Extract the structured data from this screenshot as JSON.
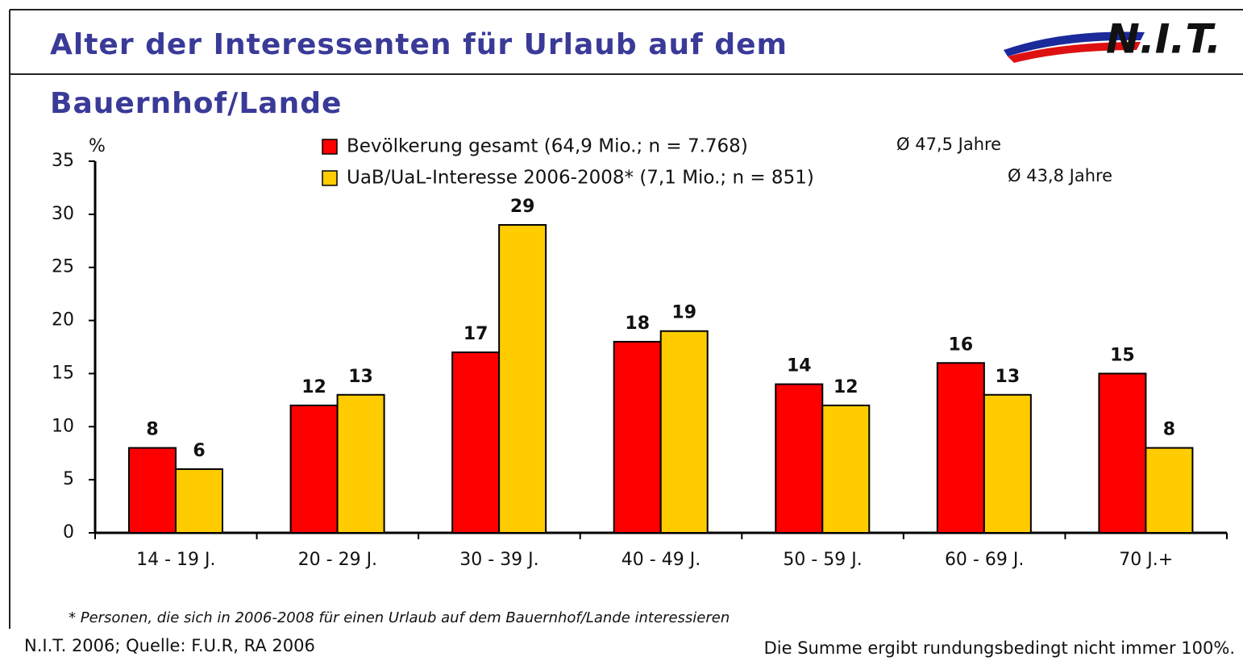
{
  "chart_data": {
    "type": "bar",
    "title": [
      "Alter der Interessenten für Urlaub auf dem",
      "Bauernhof/Lande"
    ],
    "logo": "N.I.T.",
    "y_unit": "%",
    "categories": [
      "14 - 19 J.",
      "20 - 29 J.",
      "30 - 39 J.",
      "40 - 49 J.",
      "50 - 59 J.",
      "60 - 69 J.",
      "70 J.+"
    ],
    "series": [
      {
        "name": "Bevölkerung gesamt (64,9 Mio.; n = 7.768)",
        "note": "Ø 47,5 Jahre",
        "color": "#ff0000",
        "values": [
          8,
          12,
          17,
          18,
          14,
          16,
          15
        ]
      },
      {
        "name": "UaB/UaL-Interesse 2006-2008* (7,1 Mio.; n = 851)",
        "note": "Ø 43,8 Jahre",
        "color": "#ffcc00",
        "values": [
          6,
          13,
          29,
          19,
          12,
          13,
          8
        ]
      }
    ],
    "ylim": [
      0,
      35
    ],
    "yticks": [
      0,
      5,
      10,
      15,
      20,
      25,
      30,
      35
    ],
    "footnote": "* Personen, die sich in 2006-2008 für einen Urlaub auf dem Bauernhof/Lande interessieren",
    "source": "N.I.T. 2006; Quelle: F.U.R, RA 2006",
    "note": "Die Summe ergibt rundungsbedingt nicht immer 100%."
  }
}
